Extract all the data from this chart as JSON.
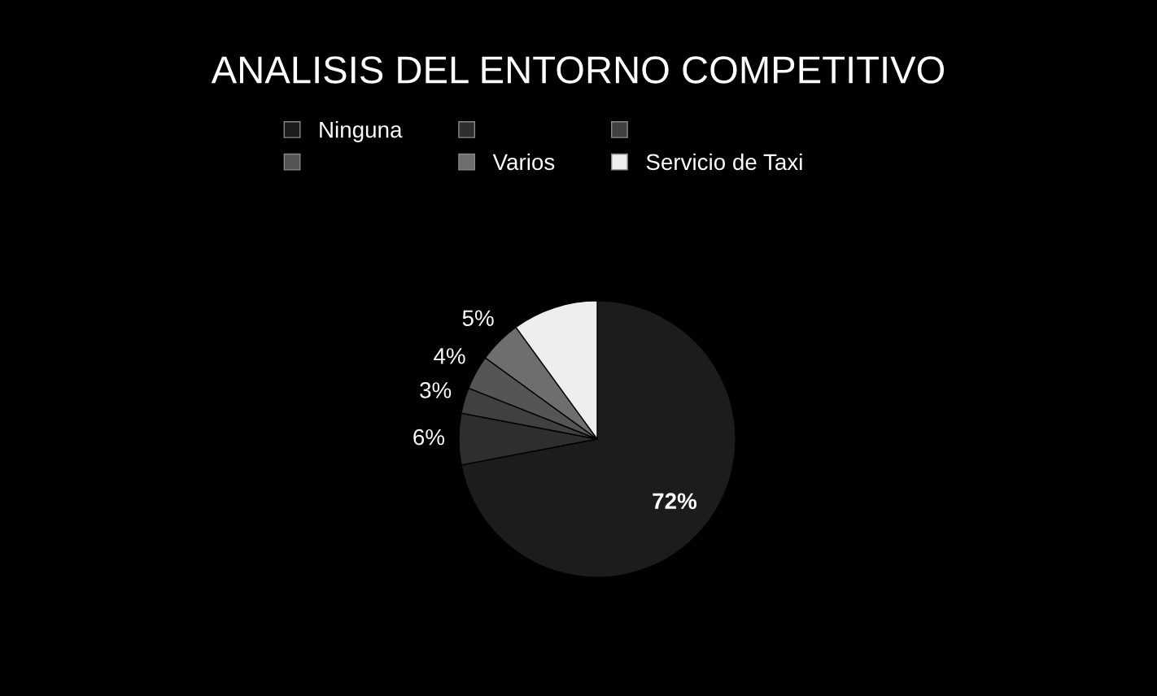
{
  "chart_data": {
    "type": "pie",
    "title": "ANALISIS DEL ENTORNO COMPETITIVO",
    "categories": [
      "Ninguna",
      null,
      null,
      null,
      "Varios",
      "Servicio de Taxi"
    ],
    "values": [
      72,
      6,
      3,
      4,
      5,
      10
    ],
    "value_labels": [
      "72%",
      "6%",
      "3%",
      "4%",
      "5%",
      null
    ],
    "colors": [
      "#1c1c1c",
      "#2e2e2e",
      "#404040",
      "#555555",
      "#6e6e6e",
      "#eeeeee"
    ],
    "legend": "top"
  }
}
